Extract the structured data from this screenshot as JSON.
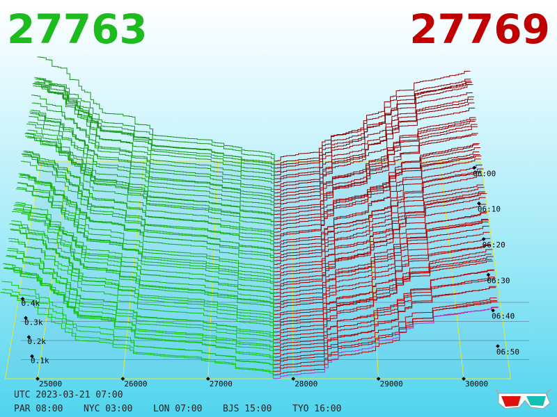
{
  "bid_price": "27763",
  "ask_price": "27769",
  "price_ticks": [
    25000,
    26000,
    27000,
    28000,
    29000,
    30000
  ],
  "volume_ticks": [
    "0.1k",
    "0.2k",
    "0.3k",
    "0.4k"
  ],
  "time_ticks": [
    "06:00",
    "06:10",
    "06:20",
    "06:30",
    "06:40",
    "06:50"
  ],
  "utc": "UTC 2023-03-21 07:00",
  "clocks": [
    "PAR 08:00",
    "NYC 03:00",
    "LON 07:00",
    "BJS 15:00",
    "TYO 16:00"
  ]
}
